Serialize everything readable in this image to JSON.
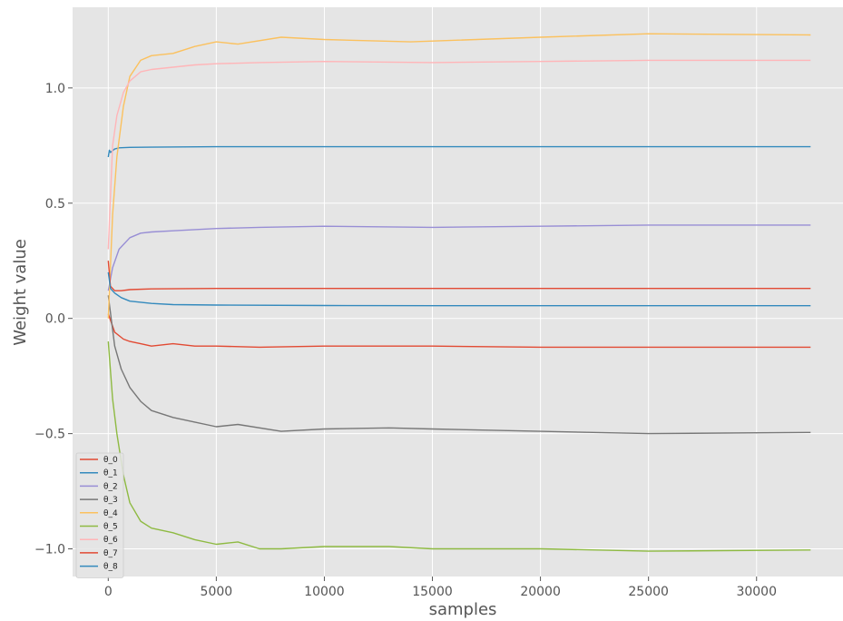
{
  "chart_data": {
    "type": "line",
    "title": "",
    "xlabel": "samples",
    "ylabel": "Weight value",
    "xlim": [
      -1650,
      34000
    ],
    "ylim": [
      -1.12,
      1.35
    ],
    "xticks": [
      0,
      5000,
      10000,
      15000,
      20000,
      25000,
      30000
    ],
    "xtick_labels": [
      "0",
      "5000",
      "10000",
      "15000",
      "20000",
      "25000",
      "30000"
    ],
    "yticks": [
      -1.0,
      -0.5,
      0.0,
      0.5,
      1.0
    ],
    "ytick_labels": [
      "−1.0",
      "−0.5",
      "0.0",
      "0.5",
      "1.0"
    ],
    "grid": true,
    "legend_position": "lower-left",
    "series": [
      {
        "name": "θ_0",
        "color": "#E24A33",
        "x": [
          0,
          300,
          700,
          1000,
          1500,
          2000,
          3000,
          4000,
          5000,
          7000,
          10000,
          15000,
          20000,
          25000,
          32500
        ],
        "y": [
          0.02,
          -0.06,
          -0.09,
          -0.1,
          -0.11,
          -0.12,
          -0.11,
          -0.12,
          -0.12,
          -0.125,
          -0.12,
          -0.12,
          -0.125,
          -0.125,
          -0.125
        ]
      },
      {
        "name": "θ_1",
        "color": "#348ABD",
        "x": [
          0,
          50,
          100,
          300,
          500,
          1000,
          2000,
          5000,
          10000,
          15000,
          20000,
          25000,
          32500
        ],
        "y": [
          0.7,
          0.73,
          0.72,
          0.735,
          0.74,
          0.742,
          0.743,
          0.745,
          0.745,
          0.745,
          0.745,
          0.745,
          0.745
        ]
      },
      {
        "name": "θ_2",
        "color": "#988ED5",
        "x": [
          0,
          200,
          500,
          1000,
          1500,
          2000,
          3000,
          5000,
          7000,
          10000,
          15000,
          20000,
          25000,
          32500
        ],
        "y": [
          0.12,
          0.22,
          0.3,
          0.35,
          0.37,
          0.375,
          0.38,
          0.39,
          0.395,
          0.4,
          0.395,
          0.4,
          0.405,
          0.405
        ]
      },
      {
        "name": "θ_3",
        "color": "#777777",
        "x": [
          0,
          300,
          600,
          1000,
          1500,
          2000,
          3000,
          4000,
          5000,
          6000,
          8000,
          10000,
          13000,
          15000,
          20000,
          25000,
          32500
        ],
        "y": [
          0.1,
          -0.12,
          -0.22,
          -0.3,
          -0.36,
          -0.4,
          -0.43,
          -0.45,
          -0.47,
          -0.46,
          -0.49,
          -0.48,
          -0.475,
          -0.48,
          -0.49,
          -0.5,
          -0.495
        ]
      },
      {
        "name": "θ_4",
        "color": "#FBC15E",
        "x": [
          0,
          200,
          400,
          700,
          1000,
          1500,
          2000,
          3000,
          4000,
          5000,
          6000,
          8000,
          10000,
          14000,
          20000,
          25000,
          32500
        ],
        "y": [
          0.0,
          0.45,
          0.7,
          0.92,
          1.05,
          1.12,
          1.14,
          1.15,
          1.18,
          1.2,
          1.19,
          1.22,
          1.21,
          1.2,
          1.22,
          1.235,
          1.23
        ]
      },
      {
        "name": "θ_5",
        "color": "#8EBA42",
        "x": [
          0,
          200,
          400,
          700,
          1000,
          1500,
          2000,
          3000,
          4000,
          5000,
          6000,
          7000,
          8000,
          10000,
          13000,
          15000,
          20000,
          25000,
          32500
        ],
        "y": [
          -0.1,
          -0.35,
          -0.5,
          -0.68,
          -0.8,
          -0.88,
          -0.91,
          -0.93,
          -0.96,
          -0.98,
          -0.97,
          -1.0,
          -1.0,
          -0.99,
          -0.99,
          -1.0,
          -1.0,
          -1.01,
          -1.005
        ]
      },
      {
        "name": "θ_6",
        "color": "#FFB5B8",
        "x": [
          0,
          200,
          400,
          700,
          1000,
          1500,
          2000,
          3000,
          4000,
          5000,
          7000,
          10000,
          15000,
          20000,
          25000,
          32500
        ],
        "y": [
          0.3,
          0.75,
          0.88,
          0.98,
          1.03,
          1.07,
          1.08,
          1.09,
          1.1,
          1.105,
          1.11,
          1.115,
          1.11,
          1.115,
          1.12,
          1.12
        ]
      },
      {
        "name": "θ_7",
        "color": "#E24A33",
        "x": [
          0,
          100,
          300,
          600,
          1000,
          2000,
          5000,
          10000,
          15000,
          20000,
          25000,
          32500
        ],
        "y": [
          0.25,
          0.14,
          0.12,
          0.12,
          0.125,
          0.128,
          0.13,
          0.13,
          0.13,
          0.13,
          0.13,
          0.13
        ]
      },
      {
        "name": "θ_8",
        "color": "#348ABD",
        "x": [
          0,
          100,
          300,
          600,
          1000,
          1500,
          2000,
          3000,
          5000,
          10000,
          15000,
          20000,
          25000,
          32500
        ],
        "y": [
          0.2,
          0.13,
          0.11,
          0.09,
          0.075,
          0.07,
          0.065,
          0.06,
          0.058,
          0.056,
          0.055,
          0.055,
          0.055,
          0.055
        ]
      }
    ]
  }
}
